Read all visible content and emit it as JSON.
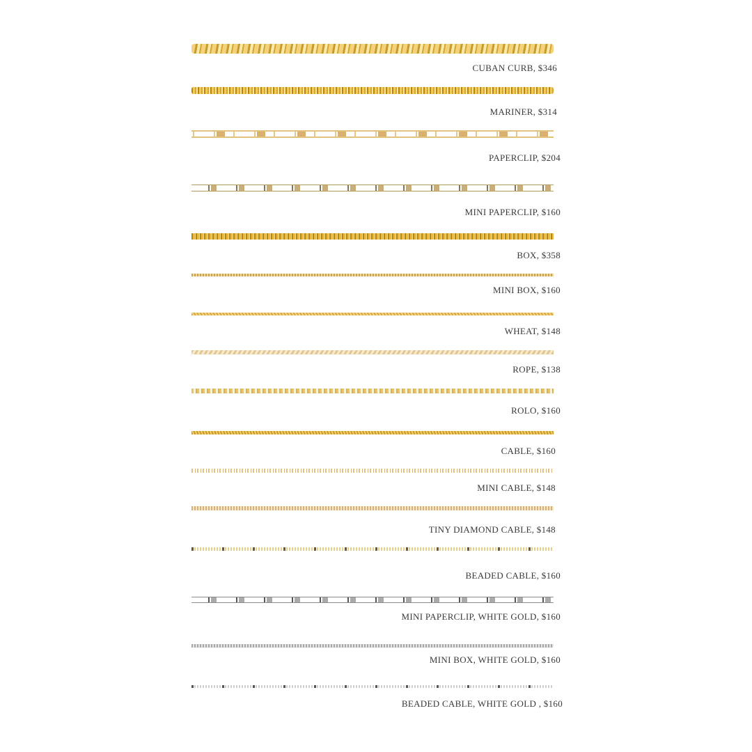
{
  "chains": [
    {
      "label": "CUBAN CURB, $346",
      "style": "curb"
    },
    {
      "label": "MARINER, $314",
      "style": "mariner"
    },
    {
      "label": "PAPERCLIP, $204",
      "style": "paperclip"
    },
    {
      "label": "MINI PAPERCLIP, $160",
      "style": "minipc"
    },
    {
      "label": "BOX, $358",
      "style": "box"
    },
    {
      "label": "MINI BOX, $160",
      "style": "minibox"
    },
    {
      "label": "WHEAT, $148",
      "style": "wheat"
    },
    {
      "label": "ROPE, $138",
      "style": "rope"
    },
    {
      "label": "ROLO, $160",
      "style": "rolo"
    },
    {
      "label": "CABLE, $160",
      "style": "cable"
    },
    {
      "label": "MINI CABLE, $148",
      "style": "minicable"
    },
    {
      "label": "TINY DIAMOND CABLE, $148",
      "style": "tiny"
    },
    {
      "label": "BEADED CABLE, $160",
      "style": "beaded"
    },
    {
      "label": "MINI PAPERCLIP, WHITE GOLD, $160",
      "style": "minipcwg"
    },
    {
      "label": "MINI BOX, WHITE GOLD, $160",
      "style": "miniboxwg"
    },
    {
      "label": "BEADED CABLE, WHITE GOLD , $160",
      "style": "beadedwg"
    }
  ],
  "colors": {
    "gold": "#e9b945",
    "white_gold": "#c8c8c8",
    "text": "#3a3a3a"
  }
}
